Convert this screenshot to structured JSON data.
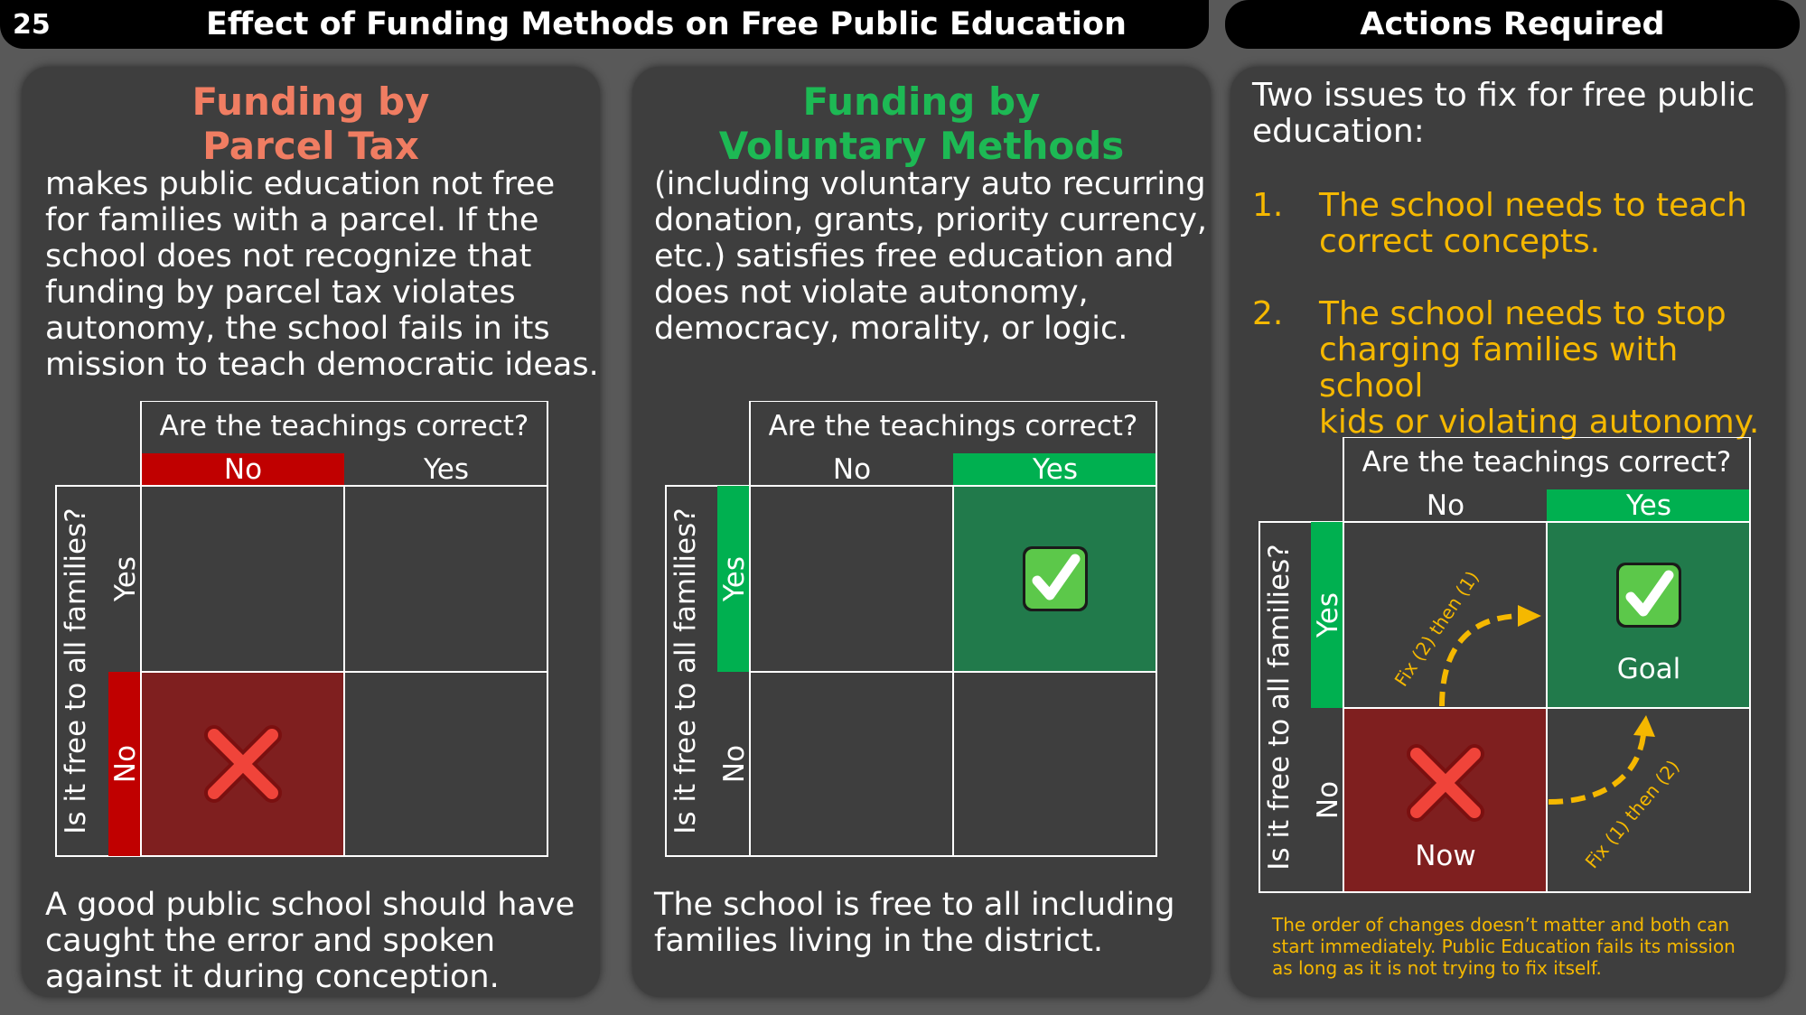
{
  "header": {
    "slide_number": "25",
    "title": "Effect of Funding Methods on Free Public Education",
    "right_title": "Actions Required"
  },
  "panel_parcel": {
    "heading_line1": "Funding by",
    "heading_line2": "Parcel Tax",
    "body": [
      "makes public education not free",
      "for families with a parcel. If the",
      "school does not recognize that",
      "funding by parcel tax violates",
      "autonomy, the school fails in its",
      "mission to teach democratic ideas."
    ],
    "footer": [
      "A good public school should have",
      "caught the error and spoken",
      "against it during conception."
    ]
  },
  "panel_voluntary": {
    "heading_line1": "Funding by",
    "heading_line2": "Voluntary Methods",
    "body": [
      "(including voluntary auto recurring",
      "donation, grants, priority currency,",
      "etc.) satisfies free education and",
      "does not violate autonomy,",
      "democracy, morality, or logic."
    ],
    "footer": [
      "The school is free to all including",
      "families living in the district."
    ]
  },
  "panel_actions": {
    "intro": [
      "Two issues to fix for free public",
      "education:"
    ],
    "items": [
      {
        "num": "1.",
        "lines": [
          "The school needs to teach",
          "correct concepts."
        ]
      },
      {
        "num": "2.",
        "lines": [
          "The school needs to stop",
          "charging families with school",
          "kids or violating autonomy."
        ]
      }
    ],
    "footnote": [
      "The order of changes doesn’t matter and both can",
      "start immediately. Public Education fails its mission",
      "as long as it is not trying to fix itself."
    ]
  },
  "matrix": {
    "col_question": "Are the teachings correct?",
    "row_question": "Is it free to all families?",
    "no_label": "No",
    "yes_label": "Yes",
    "goal_label": "Goal",
    "now_label": "Now",
    "arrow_up_label": "Fix (2) then (1)",
    "arrow_right_label": "Fix (1) then (2)"
  },
  "colors": {
    "red_accent": "#c00000",
    "dark_red_cell": "#7f1f1f",
    "green_accent": "#00b050",
    "dark_green_cell": "#217a4b",
    "yellow_text": "#f5b800",
    "panel_bg": "#3e3e3e"
  },
  "icons": {
    "cross": "cross-mark-icon",
    "check": "check-mark-icon"
  }
}
